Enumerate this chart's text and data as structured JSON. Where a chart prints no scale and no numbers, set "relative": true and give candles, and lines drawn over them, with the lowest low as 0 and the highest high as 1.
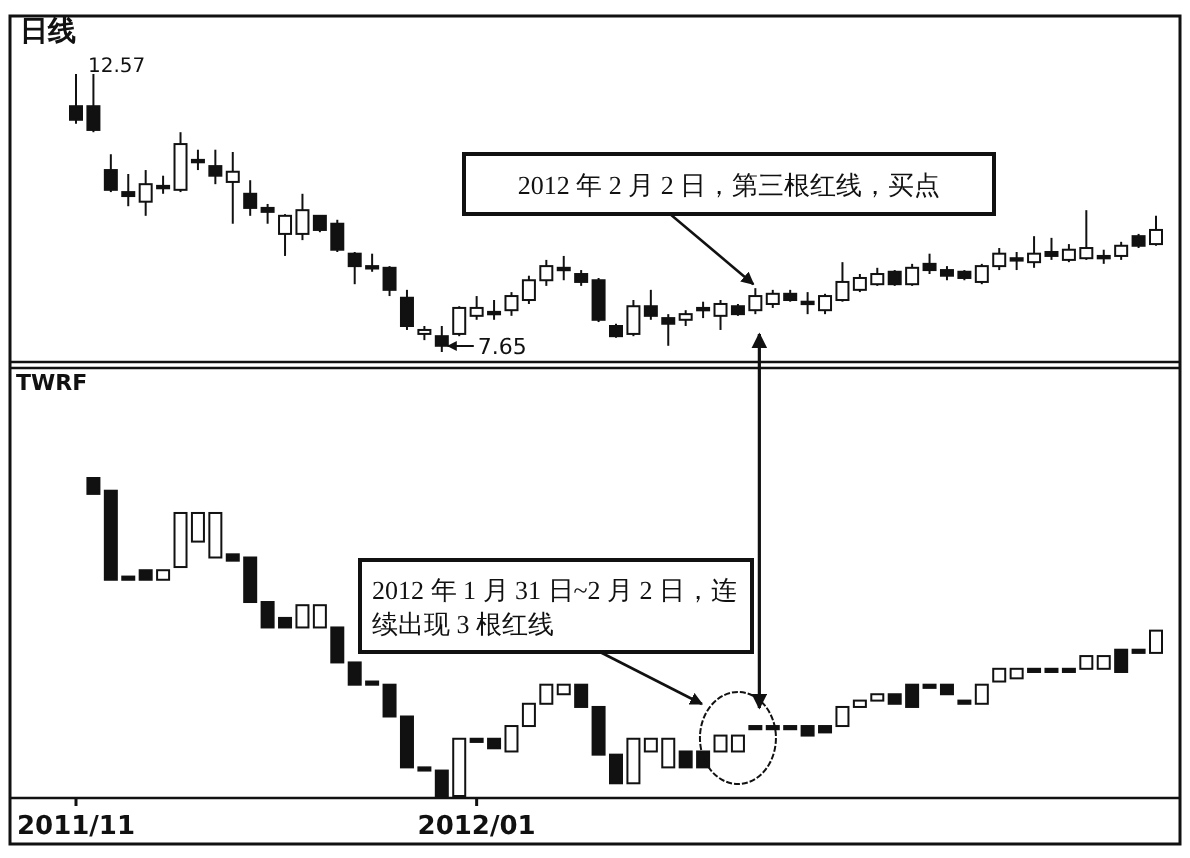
{
  "chart_data": [
    {
      "type": "candlestick",
      "title": "日线",
      "tick_labels": false,
      "categories": [
        null,
        null,
        null,
        null,
        null,
        null,
        null,
        null,
        null,
        null,
        null,
        null,
        null,
        null,
        null,
        null,
        null,
        null,
        null,
        null,
        null,
        null,
        null,
        null,
        null,
        null,
        null,
        null,
        null,
        null,
        null,
        null,
        null,
        null,
        null,
        null,
        null,
        null,
        null,
        null,
        null,
        null,
        null,
        null,
        null,
        null,
        null,
        null,
        null,
        null,
        null,
        null,
        null,
        null,
        null,
        null,
        null,
        null,
        null,
        null,
        null,
        null,
        null
      ],
      "ohlc": [
        [
          12.0,
          12.57,
          11.69,
          11.76
        ],
        [
          12.0,
          12.57,
          11.54,
          11.58
        ],
        [
          10.87,
          11.15,
          10.48,
          10.52
        ],
        [
          10.48,
          10.8,
          10.23,
          10.41
        ],
        [
          10.31,
          10.87,
          10.06,
          10.62
        ],
        [
          10.59,
          10.77,
          10.45,
          10.55
        ],
        [
          10.52,
          11.54,
          10.48,
          11.33
        ],
        [
          11.05,
          11.23,
          10.87,
          11.01
        ],
        [
          10.94,
          11.23,
          10.62,
          10.77
        ],
        [
          10.66,
          11.19,
          9.92,
          10.84
        ],
        [
          10.45,
          10.69,
          10.06,
          10.2
        ],
        [
          10.2,
          10.27,
          9.92,
          10.13
        ],
        [
          9.74,
          10.09,
          9.35,
          10.06
        ],
        [
          9.74,
          10.45,
          9.63,
          10.16
        ],
        [
          10.06,
          10.06,
          9.77,
          9.81
        ],
        [
          9.92,
          9.99,
          9.42,
          9.46
        ],
        [
          9.39,
          9.42,
          8.85,
          9.17
        ],
        [
          9.17,
          9.39,
          9.07,
          9.14
        ],
        [
          9.14,
          9.17,
          8.64,
          8.75
        ],
        [
          8.61,
          8.75,
          8.04,
          8.11
        ],
        [
          7.97,
          8.11,
          7.86,
          8.04
        ],
        [
          7.93,
          8.11,
          7.65,
          7.76
        ],
        [
          7.97,
          8.46,
          7.93,
          8.43
        ],
        [
          8.29,
          8.64,
          8.22,
          8.43
        ],
        [
          8.36,
          8.57,
          8.22,
          8.32
        ],
        [
          8.39,
          8.71,
          8.29,
          8.64
        ],
        [
          8.57,
          9.0,
          8.5,
          8.92
        ],
        [
          8.92,
          9.28,
          8.82,
          9.17
        ],
        [
          9.14,
          9.35,
          8.92,
          9.1
        ],
        [
          9.03,
          9.1,
          8.82,
          8.89
        ],
        [
          8.92,
          8.96,
          8.18,
          8.22
        ],
        [
          8.11,
          8.15,
          7.9,
          7.93
        ],
        [
          7.97,
          8.57,
          7.93,
          8.46
        ],
        [
          8.46,
          8.75,
          8.22,
          8.29
        ],
        [
          8.25,
          8.32,
          7.76,
          8.15
        ],
        [
          8.22,
          8.39,
          8.11,
          8.32
        ],
        [
          8.43,
          8.54,
          8.25,
          8.39
        ],
        [
          8.29,
          8.57,
          8.04,
          8.5
        ],
        [
          8.46,
          8.5,
          8.29,
          8.32
        ],
        [
          8.39,
          8.78,
          8.32,
          8.64
        ],
        [
          8.5,
          8.75,
          8.43,
          8.68
        ],
        [
          8.68,
          8.75,
          8.54,
          8.57
        ],
        [
          8.54,
          8.71,
          8.32,
          8.5
        ],
        [
          8.39,
          8.68,
          8.32,
          8.64
        ],
        [
          8.57,
          9.24,
          8.54,
          8.89
        ],
        [
          8.75,
          9.03,
          8.71,
          8.96
        ],
        [
          8.85,
          9.14,
          8.82,
          9.03
        ],
        [
          9.07,
          9.1,
          8.82,
          8.85
        ],
        [
          8.85,
          9.21,
          8.82,
          9.14
        ],
        [
          9.21,
          9.39,
          9.03,
          9.1
        ],
        [
          9.1,
          9.17,
          8.92,
          9.0
        ],
        [
          9.07,
          9.1,
          8.92,
          8.96
        ],
        [
          8.89,
          9.21,
          8.85,
          9.17
        ],
        [
          9.17,
          9.49,
          9.1,
          9.39
        ],
        [
          9.31,
          9.42,
          9.1,
          9.28
        ],
        [
          9.24,
          9.7,
          9.14,
          9.39
        ],
        [
          9.42,
          9.67,
          9.28,
          9.35
        ],
        [
          9.28,
          9.56,
          9.24,
          9.46
        ],
        [
          9.31,
          10.16,
          9.28,
          9.49
        ],
        [
          9.35,
          9.46,
          9.21,
          9.31
        ],
        [
          9.35,
          9.6,
          9.28,
          9.53
        ],
        [
          9.7,
          9.74,
          9.49,
          9.53
        ],
        [
          9.56,
          10.06,
          9.53,
          9.81
        ]
      ],
      "annotations": [
        "12.57",
        "7.65",
        "2012 年 2 月 2 日，第三根红线，买点"
      ]
    },
    {
      "type": "candlestick",
      "title": "TWRF",
      "relative": true,
      "tick_labels": "x",
      "categories": [
        "2011/11",
        null,
        null,
        null,
        null,
        null,
        null,
        null,
        null,
        null,
        null,
        null,
        null,
        null,
        null,
        null,
        null,
        null,
        null,
        null,
        null,
        null,
        null,
        "2012/01",
        null,
        null,
        null,
        null,
        null,
        null,
        null,
        null,
        null,
        null,
        null,
        null,
        null,
        null,
        null,
        null,
        null,
        null,
        null,
        null,
        null,
        null,
        null,
        null,
        null,
        null,
        null,
        null,
        null,
        null,
        null,
        null,
        null,
        null,
        null,
        null,
        null,
        null,
        null
      ],
      "ohlc": [
        null,
        [
          1.0,
          1.0,
          0.95,
          0.95
        ],
        [
          0.96,
          0.96,
          0.68,
          0.68
        ],
        [
          0.69,
          0.69,
          0.68,
          0.68
        ],
        [
          0.71,
          0.71,
          0.68,
          0.68
        ],
        [
          0.68,
          0.71,
          0.68,
          0.71
        ],
        [
          0.72,
          0.89,
          0.72,
          0.89
        ],
        [
          0.8,
          0.89,
          0.8,
          0.89
        ],
        [
          0.75,
          0.89,
          0.75,
          0.89
        ],
        [
          0.76,
          0.76,
          0.74,
          0.74
        ],
        [
          0.75,
          0.75,
          0.61,
          0.61
        ],
        [
          0.61,
          0.61,
          0.53,
          0.53
        ],
        [
          0.56,
          0.56,
          0.53,
          0.53
        ],
        [
          0.53,
          0.6,
          0.53,
          0.6
        ],
        [
          0.53,
          0.6,
          0.53,
          0.6
        ],
        [
          0.53,
          0.53,
          0.42,
          0.42
        ],
        [
          0.42,
          0.42,
          0.35,
          0.35
        ],
        [
          0.36,
          0.36,
          0.35,
          0.35
        ],
        [
          0.35,
          0.35,
          0.25,
          0.25
        ],
        [
          0.25,
          0.25,
          0.09,
          0.09
        ],
        [
          0.09,
          0.09,
          0.08,
          0.08
        ],
        [
          0.08,
          0.08,
          0,
          0
        ],
        [
          0,
          0.18,
          0,
          0.18
        ],
        [
          0.18,
          0.18,
          0.17,
          0.17
        ],
        [
          0.18,
          0.18,
          0.15,
          0.15
        ],
        [
          0.14,
          0.22,
          0.14,
          0.22
        ],
        [
          0.22,
          0.29,
          0.22,
          0.29
        ],
        [
          0.29,
          0.35,
          0.29,
          0.35
        ],
        [
          0.32,
          0.35,
          0.32,
          0.35
        ],
        [
          0.35,
          0.35,
          0.28,
          0.28
        ],
        [
          0.28,
          0.28,
          0.13,
          0.13
        ],
        [
          0.13,
          0.13,
          0.04,
          0.04
        ],
        [
          0.04,
          0.18,
          0.04,
          0.18
        ],
        [
          0.14,
          0.18,
          0.14,
          0.18
        ],
        [
          0.09,
          0.18,
          0.09,
          0.18
        ],
        [
          0.14,
          0.14,
          0.09,
          0.09
        ],
        [
          0.14,
          0.14,
          0.09,
          0.09
        ],
        [
          0.14,
          0.19,
          0.14,
          0.19
        ],
        [
          0.14,
          0.19,
          0.14,
          0.19
        ],
        [
          0.22,
          0.22,
          0.21,
          0.21
        ],
        [
          0.22,
          0.22,
          0.21,
          0.21
        ],
        [
          0.22,
          0.22,
          0.21,
          0.21
        ],
        [
          0.22,
          0.22,
          0.19,
          0.19
        ],
        [
          0.22,
          0.22,
          0.2,
          0.2
        ],
        [
          0.22,
          0.28,
          0.22,
          0.28
        ],
        [
          0.28,
          0.3,
          0.28,
          0.3
        ],
        [
          0.3,
          0.32,
          0.3,
          0.32
        ],
        [
          0.32,
          0.32,
          0.29,
          0.29
        ],
        [
          0.35,
          0.35,
          0.28,
          0.28
        ],
        [
          0.35,
          0.35,
          0.34,
          0.34
        ],
        [
          0.35,
          0.35,
          0.32,
          0.32
        ],
        [
          0.3,
          0.3,
          0.29,
          0.29
        ],
        [
          0.29,
          0.35,
          0.29,
          0.35
        ],
        [
          0.36,
          0.4,
          0.36,
          0.4
        ],
        [
          0.37,
          0.4,
          0.37,
          0.4
        ],
        [
          0.4,
          0.4,
          0.39,
          0.39
        ],
        [
          0.4,
          0.4,
          0.39,
          0.39
        ],
        [
          0.4,
          0.4,
          0.39,
          0.39
        ],
        [
          0.4,
          0.44,
          0.4,
          0.44
        ],
        [
          0.4,
          0.44,
          0.4,
          0.44
        ],
        [
          0.46,
          0.46,
          0.39,
          0.39
        ],
        [
          0.46,
          0.46,
          0.45,
          0.45
        ],
        [
          0.45,
          0.52,
          0.45,
          0.52
        ]
      ],
      "annotations": [
        "2012 年 1 月 31 日~2 月 2 日，连续出现 3 根红线"
      ]
    }
  ]
}
